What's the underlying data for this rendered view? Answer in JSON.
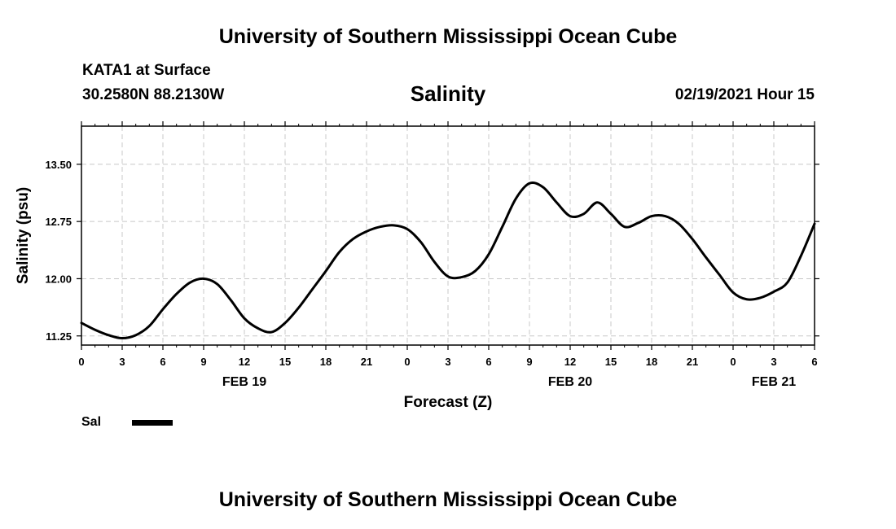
{
  "header": {
    "title": "University of Southern Mississippi Ocean Cube",
    "station": "KATA1 at Surface",
    "coordinates": "30.2580N 88.2130W",
    "parameter": "Salinity",
    "datetime": "02/19/2021 Hour 15"
  },
  "footer": {
    "title": "University of Southern Mississippi Ocean Cube"
  },
  "legend": {
    "label": "Sal"
  },
  "colors": {
    "line": "#000000",
    "grid": "#c8c8c8",
    "background": "#ffffff"
  },
  "chart_data": {
    "type": "line",
    "xlabel": "Forecast (Z)",
    "ylabel": "Salinity (psu)",
    "ylim": [
      11.13,
      14.0
    ],
    "y_ticks": [
      "11.25",
      "12.00",
      "12.75",
      "13.50"
    ],
    "x_tick_labels": [
      "0",
      "3",
      "6",
      "9",
      "12",
      "15",
      "18",
      "21",
      "0",
      "3",
      "6",
      "9",
      "12",
      "15",
      "18",
      "21",
      "0",
      "3",
      "6"
    ],
    "date_labels": [
      {
        "label": "FEB 19",
        "at_tick": 4
      },
      {
        "label": "FEB 20",
        "at_tick": 12
      },
      {
        "label": "FEB 21",
        "at_tick": 17
      }
    ],
    "grid": true,
    "legend_position": "bottom-left",
    "series": [
      {
        "name": "Sal",
        "x_hours": [
          0,
          1,
          2,
          3,
          4,
          5,
          6,
          7,
          8,
          9,
          10,
          11,
          12,
          13,
          14,
          15,
          16,
          17,
          18,
          19,
          20,
          21,
          22,
          23,
          24,
          25,
          26,
          27,
          28,
          29,
          30,
          31,
          32,
          33,
          34,
          35,
          36,
          37,
          38,
          39,
          40,
          41,
          42,
          43,
          44,
          45,
          46,
          47,
          48,
          49,
          50,
          51,
          52,
          53,
          54
        ],
        "y": [
          11.42,
          11.33,
          11.26,
          11.22,
          11.26,
          11.38,
          11.6,
          11.8,
          11.95,
          12.0,
          11.93,
          11.72,
          11.48,
          11.35,
          11.3,
          11.42,
          11.62,
          11.86,
          12.1,
          12.35,
          12.52,
          12.62,
          12.68,
          12.7,
          12.65,
          12.48,
          12.22,
          12.03,
          12.02,
          12.1,
          12.32,
          12.68,
          13.05,
          13.25,
          13.2,
          13.0,
          12.82,
          12.85,
          13.0,
          12.85,
          12.68,
          12.73,
          12.82,
          12.82,
          12.72,
          12.52,
          12.28,
          12.05,
          11.82,
          11.73,
          11.75,
          11.83,
          11.95,
          12.3,
          12.72
        ]
      }
    ]
  }
}
